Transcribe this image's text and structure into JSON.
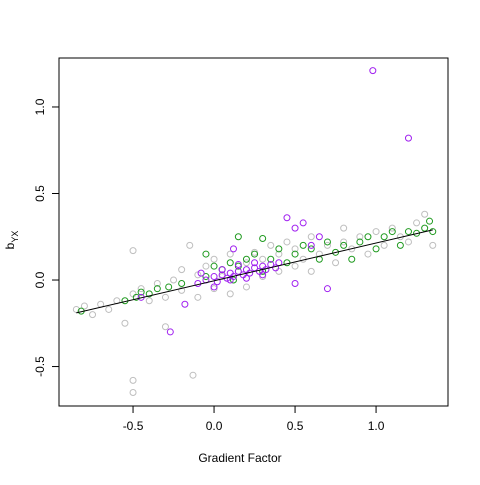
{
  "chart_data": {
    "type": "scatter",
    "x_label": "Gradient Factor",
    "y_label": "b",
    "y_label_subscript": "YX",
    "xlim": [
      -0.957,
      1.444
    ],
    "ylim": [
      -0.728,
      1.283
    ],
    "xticks": [
      -0.5,
      {
        "value": 0,
        "label": "0.0"
      },
      0.5,
      {
        "value": 1,
        "label": "1.0"
      }
    ],
    "yticks": [
      -0.5,
      {
        "value": 0,
        "label": "0.0"
      },
      0.5,
      {
        "value": 1,
        "label": "1.0"
      }
    ],
    "series": [
      {
        "color": "#bebebe",
        "x": [
          -0.85,
          -0.8,
          -0.75,
          -0.7,
          -0.65,
          -0.6,
          -0.55,
          -0.5,
          -0.5,
          -0.5,
          -0.5,
          -0.45,
          -0.4,
          -0.35,
          -0.3,
          -0.3,
          -0.25,
          -0.2,
          -0.2,
          -0.15,
          -0.13,
          -0.1,
          -0.1,
          -0.05,
          0,
          0,
          0.05,
          0.1,
          0.1,
          0.15,
          0.2,
          0.2,
          0.25,
          0.3,
          0.3,
          0.35,
          0.4,
          0.4,
          0.45,
          0.5,
          0.5,
          0.55,
          0.6,
          0.6,
          0.65,
          0.7,
          0.75,
          0.8,
          0.8,
          0.85,
          0.9,
          0.95,
          1,
          1.05,
          1.1,
          1.15,
          1.2,
          1.3,
          1.35,
          1.25
        ],
        "values": [
          -0.17,
          -0.15,
          -0.2,
          -0.14,
          -0.17,
          -0.12,
          -0.25,
          -0.08,
          -0.58,
          -0.65,
          0.17,
          -0.05,
          -0.12,
          -0.02,
          -0.1,
          -0.27,
          0,
          -0.06,
          0.06,
          0.2,
          -0.55,
          0.03,
          -0.1,
          0.08,
          -0.05,
          0.12,
          0.02,
          0.15,
          -0.08,
          0.05,
          0.1,
          -0.04,
          0.16,
          0.02,
          0.12,
          0.2,
          0.05,
          0.15,
          0.22,
          0.08,
          0.18,
          0.12,
          0.25,
          0.05,
          0.15,
          0.2,
          0.1,
          0.22,
          0.3,
          0.18,
          0.25,
          0.15,
          0.28,
          0.2,
          0.3,
          0.25,
          0.22,
          0.38,
          0.2,
          0.33
        ]
      },
      {
        "color": "#1f9a1f",
        "x": [
          -0.82,
          -0.55,
          -0.48,
          -0.45,
          -0.4,
          -0.35,
          -0.28,
          -0.2,
          -0.05,
          0,
          0.05,
          0.1,
          0.12,
          0.15,
          0.2,
          0.25,
          0.3,
          0.3,
          0.35,
          0.4,
          0.45,
          0.5,
          0.55,
          0.6,
          0.65,
          0.7,
          0.75,
          0.8,
          0.85,
          0.9,
          0.95,
          1,
          1.05,
          1.1,
          1.15,
          1.2,
          1.25,
          1.3,
          1.33,
          1.35,
          0.15,
          -0.05
        ],
        "values": [
          -0.18,
          -0.12,
          -0.1,
          -0.07,
          -0.08,
          -0.05,
          -0.04,
          -0.02,
          0.02,
          0.08,
          0.06,
          0.1,
          0,
          0.08,
          0.12,
          0.15,
          0.05,
          0.24,
          0.12,
          0.18,
          0.1,
          0.15,
          0.2,
          0.18,
          0.12,
          0.22,
          0.16,
          0.2,
          0.12,
          0.22,
          0.25,
          0.18,
          0.25,
          0.28,
          0.2,
          0.28,
          0.27,
          0.3,
          0.34,
          0.28,
          0.25,
          0.15
        ]
      },
      {
        "color": "#a020f0",
        "x": [
          0.98,
          1.2,
          0.45,
          0.5,
          0.55,
          0.5,
          0.7,
          -0.27,
          -0.18,
          -0.45,
          0.12,
          -0.1,
          -0.05,
          0,
          0.02,
          0.05,
          0.08,
          0.1,
          0.12,
          0.15,
          0.18,
          0.2,
          0.22,
          0.25,
          0.28,
          0.3,
          0.32,
          0.35,
          0.38,
          0.4,
          0,
          0.05,
          0.1,
          0.15,
          0.2,
          0.25,
          0.3,
          -0.08,
          0.6,
          0.65
        ],
        "values": [
          1.21,
          0.82,
          0.36,
          0.3,
          0.33,
          -0.02,
          -0.05,
          -0.3,
          -0.14,
          -0.1,
          0.18,
          -0.02,
          0,
          0.02,
          -0.01,
          0.03,
          0.01,
          0.04,
          0.02,
          0.05,
          0.03,
          0.06,
          0.04,
          0.07,
          0.05,
          0.08,
          0.06,
          0.09,
          0.07,
          0.1,
          -0.04,
          0.06,
          0,
          0.09,
          0.01,
          0.1,
          0.03,
          0.04,
          0.2,
          0.25
        ]
      }
    ],
    "fit_line": {
      "color": "#000000",
      "x": [
        -0.85,
        1.35
      ],
      "values": [
        -0.19,
        0.29
      ]
    }
  }
}
